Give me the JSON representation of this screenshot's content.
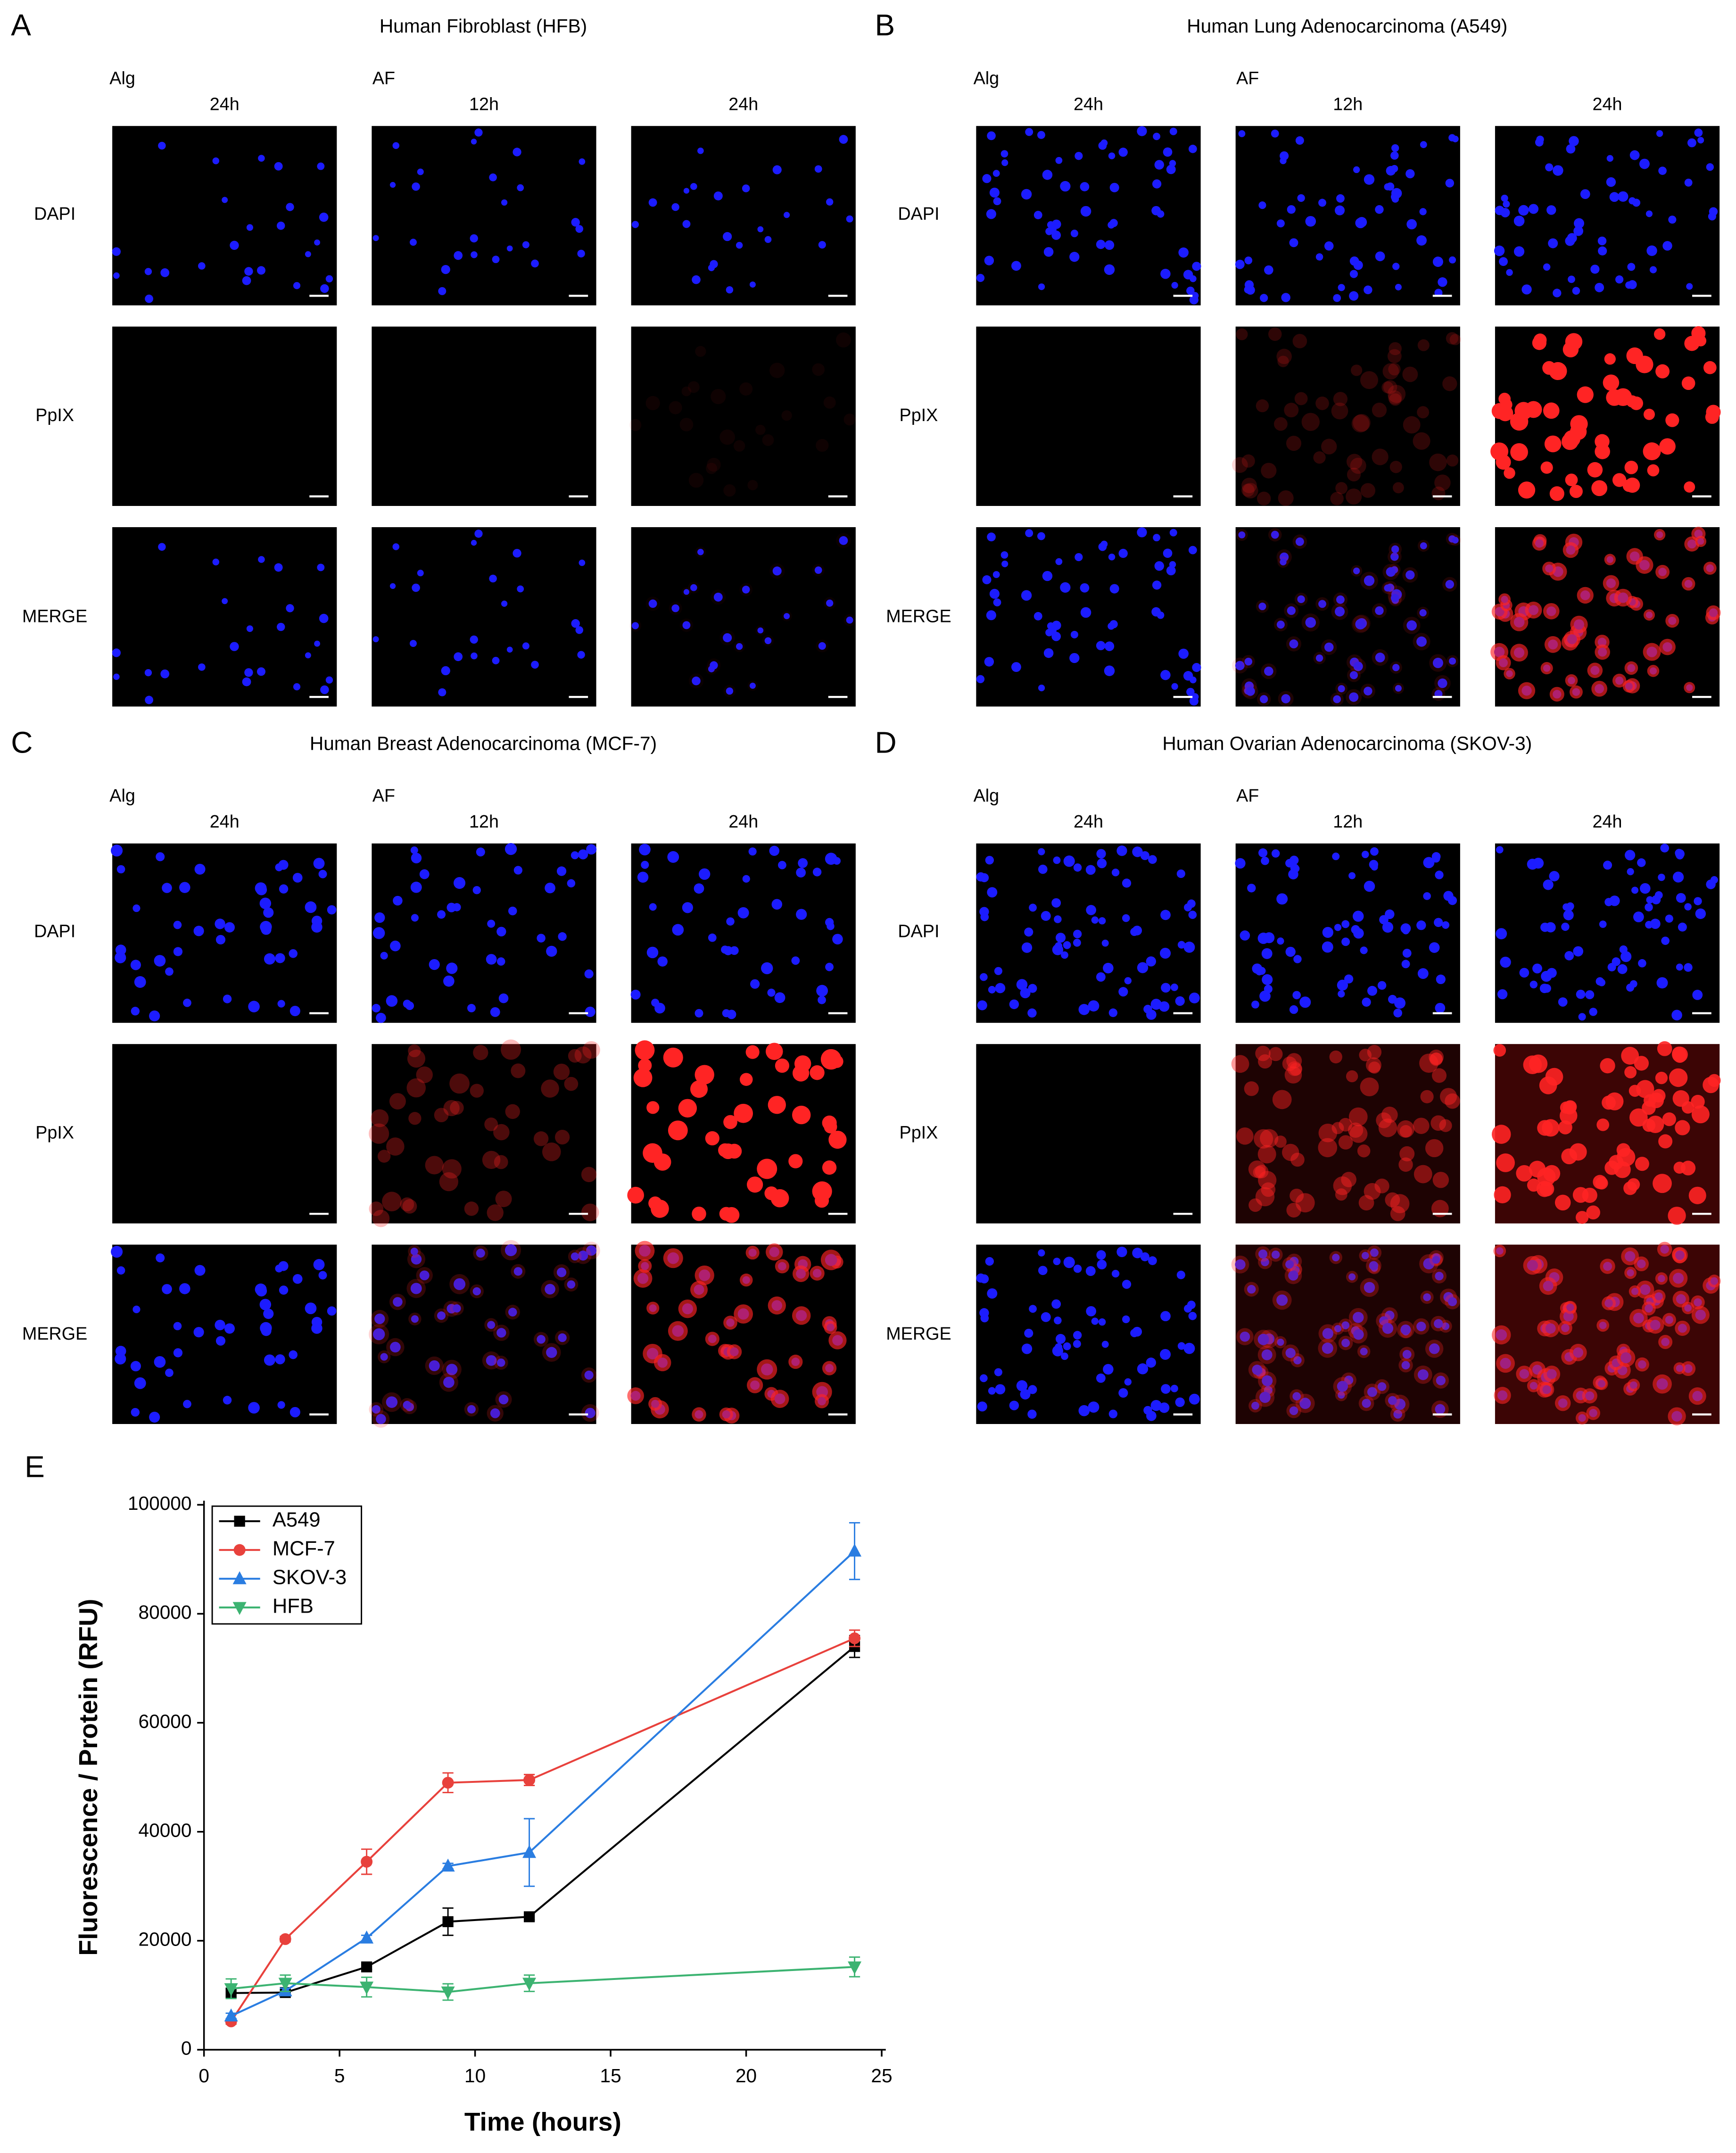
{
  "panels": [
    {
      "letter": "A",
      "title": "Human Fibroblast (HFB)",
      "groups": [
        "Alg",
        "AF"
      ],
      "columns": [
        "24h",
        "12h",
        "24h"
      ],
      "rows": [
        "DAPI",
        "PpIX",
        "MERGE"
      ]
    },
    {
      "letter": "B",
      "title": "Human Lung Adenocarcinoma (A549)",
      "groups": [
        "Alg",
        "AF"
      ],
      "columns": [
        "24h",
        "12h",
        "24h"
      ],
      "rows": [
        "DAPI",
        "PpIX",
        "MERGE"
      ]
    },
    {
      "letter": "C",
      "title": "Human Breast Adenocarcinoma (MCF-7)",
      "groups": [
        "Alg",
        "AF"
      ],
      "columns": [
        "24h",
        "12h",
        "24h"
      ],
      "rows": [
        "DAPI",
        "PpIX",
        "MERGE"
      ]
    },
    {
      "letter": "D",
      "title": "Human Ovarian Adenocarcinoma (SKOV-3)",
      "groups": [
        "Alg",
        "AF"
      ],
      "columns": [
        "24h",
        "12h",
        "24h"
      ],
      "rows": [
        "DAPI",
        "PpIX",
        "MERGE"
      ]
    }
  ],
  "chart_data": {
    "type": "line",
    "panel_label": "E",
    "xlabel": "Time (hours)",
    "ylabel": "Fluorescence / Protein (RFU)",
    "x": [
      1,
      3,
      6,
      9,
      12,
      24
    ],
    "series": [
      {
        "name": "A549",
        "color": "#000000",
        "marker": "square",
        "values": [
          10400,
          10500,
          15200,
          23500,
          24400,
          74000
        ],
        "errors": [
          800,
          500,
          500,
          2500,
          600,
          2000
        ]
      },
      {
        "name": "MCF-7",
        "color": "#e8413c",
        "marker": "circle",
        "values": [
          5200,
          20300,
          34500,
          49000,
          49500,
          75500
        ],
        "errors": [
          500,
          500,
          2300,
          1800,
          1000,
          1500
        ]
      },
      {
        "name": "SKOV-3",
        "color": "#2a7de1",
        "marker": "triangle-up",
        "values": [
          6200,
          10800,
          20500,
          33700,
          36200,
          91500
        ],
        "errors": [
          500,
          500,
          500,
          500,
          6200,
          5200
        ]
      },
      {
        "name": "HFB",
        "color": "#3cb371",
        "marker": "triangle-down",
        "values": [
          11200,
          12200,
          11500,
          10600,
          12200,
          15200
        ],
        "errors": [
          1800,
          1500,
          1800,
          1500,
          1500,
          1800
        ]
      }
    ],
    "xlim": [
      0,
      25
    ],
    "xticks": [
      0,
      5,
      10,
      15,
      20,
      25
    ],
    "ylim": [
      0,
      100000
    ],
    "yticks": [
      0,
      20000,
      40000,
      60000,
      80000,
      100000
    ],
    "legend": "upper left"
  }
}
